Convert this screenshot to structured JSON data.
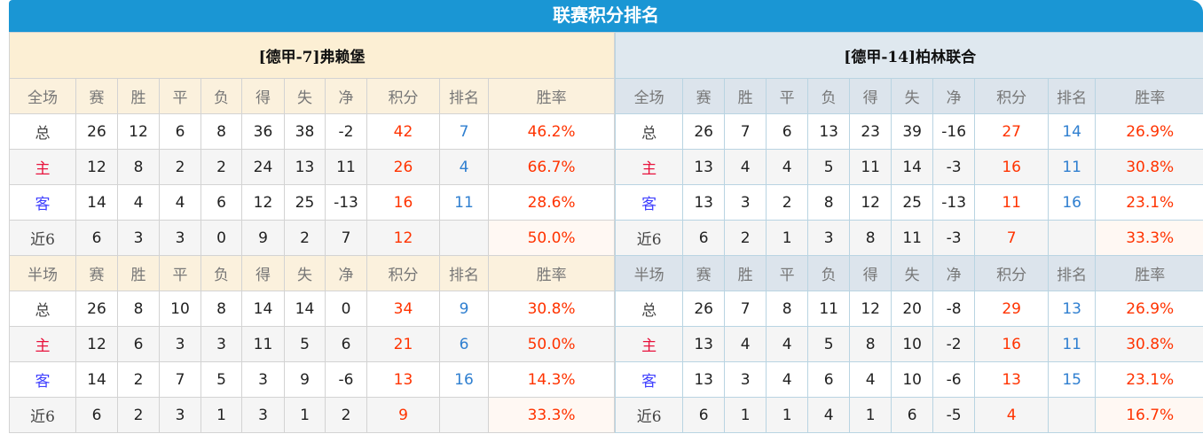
{
  "title": "联赛积分排名",
  "colors": {
    "title_bar": "#1a96d4",
    "points": "#ff3300",
    "rank": "#2f7fd0",
    "home": "#e8123c",
    "away": "#4040ff"
  },
  "teams": [
    {
      "name": "[德甲-7]弗赖堡",
      "sections": [
        {
          "header": [
            "全场",
            "赛",
            "胜",
            "平",
            "负",
            "得",
            "失",
            "净",
            "积分",
            "排名",
            "胜率"
          ],
          "rows": [
            [
              "总",
              "26",
              "12",
              "6",
              "8",
              "36",
              "38",
              "-2",
              "42",
              "7",
              "46.2%"
            ],
            [
              "主",
              "12",
              "8",
              "2",
              "2",
              "24",
              "13",
              "11",
              "26",
              "4",
              "66.7%"
            ],
            [
              "客",
              "14",
              "4",
              "4",
              "6",
              "12",
              "25",
              "-13",
              "16",
              "11",
              "28.6%"
            ],
            [
              "近6",
              "6",
              "3",
              "3",
              "0",
              "9",
              "2",
              "7",
              "12",
              "",
              "50.0%"
            ]
          ]
        },
        {
          "header": [
            "半场",
            "赛",
            "胜",
            "平",
            "负",
            "得",
            "失",
            "净",
            "积分",
            "排名",
            "胜率"
          ],
          "rows": [
            [
              "总",
              "26",
              "8",
              "10",
              "8",
              "14",
              "14",
              "0",
              "34",
              "9",
              "30.8%"
            ],
            [
              "主",
              "12",
              "6",
              "3",
              "3",
              "11",
              "5",
              "6",
              "21",
              "6",
              "50.0%"
            ],
            [
              "客",
              "14",
              "2",
              "7",
              "5",
              "3",
              "9",
              "-6",
              "13",
              "16",
              "14.3%"
            ],
            [
              "近6",
              "6",
              "2",
              "3",
              "1",
              "3",
              "1",
              "2",
              "9",
              "",
              "33.3%"
            ]
          ]
        }
      ]
    },
    {
      "name": "[德甲-14]柏林联合",
      "sections": [
        {
          "header": [
            "全场",
            "赛",
            "胜",
            "平",
            "负",
            "得",
            "失",
            "净",
            "积分",
            "排名",
            "胜率"
          ],
          "rows": [
            [
              "总",
              "26",
              "7",
              "6",
              "13",
              "23",
              "39",
              "-16",
              "27",
              "14",
              "26.9%"
            ],
            [
              "主",
              "13",
              "4",
              "4",
              "5",
              "11",
              "14",
              "-3",
              "16",
              "11",
              "30.8%"
            ],
            [
              "客",
              "13",
              "3",
              "2",
              "8",
              "12",
              "25",
              "-13",
              "11",
              "16",
              "23.1%"
            ],
            [
              "近6",
              "6",
              "2",
              "1",
              "3",
              "8",
              "11",
              "-3",
              "7",
              "",
              "33.3%"
            ]
          ]
        },
        {
          "header": [
            "半场",
            "赛",
            "胜",
            "平",
            "负",
            "得",
            "失",
            "净",
            "积分",
            "排名",
            "胜率"
          ],
          "rows": [
            [
              "总",
              "26",
              "7",
              "8",
              "11",
              "12",
              "20",
              "-8",
              "29",
              "13",
              "26.9%"
            ],
            [
              "主",
              "13",
              "4",
              "4",
              "5",
              "8",
              "10",
              "-2",
              "16",
              "11",
              "30.8%"
            ],
            [
              "客",
              "13",
              "3",
              "4",
              "6",
              "4",
              "10",
              "-6",
              "13",
              "15",
              "23.1%"
            ],
            [
              "近6",
              "6",
              "1",
              "1",
              "4",
              "1",
              "6",
              "-5",
              "4",
              "",
              "16.7%"
            ]
          ]
        }
      ]
    }
  ]
}
